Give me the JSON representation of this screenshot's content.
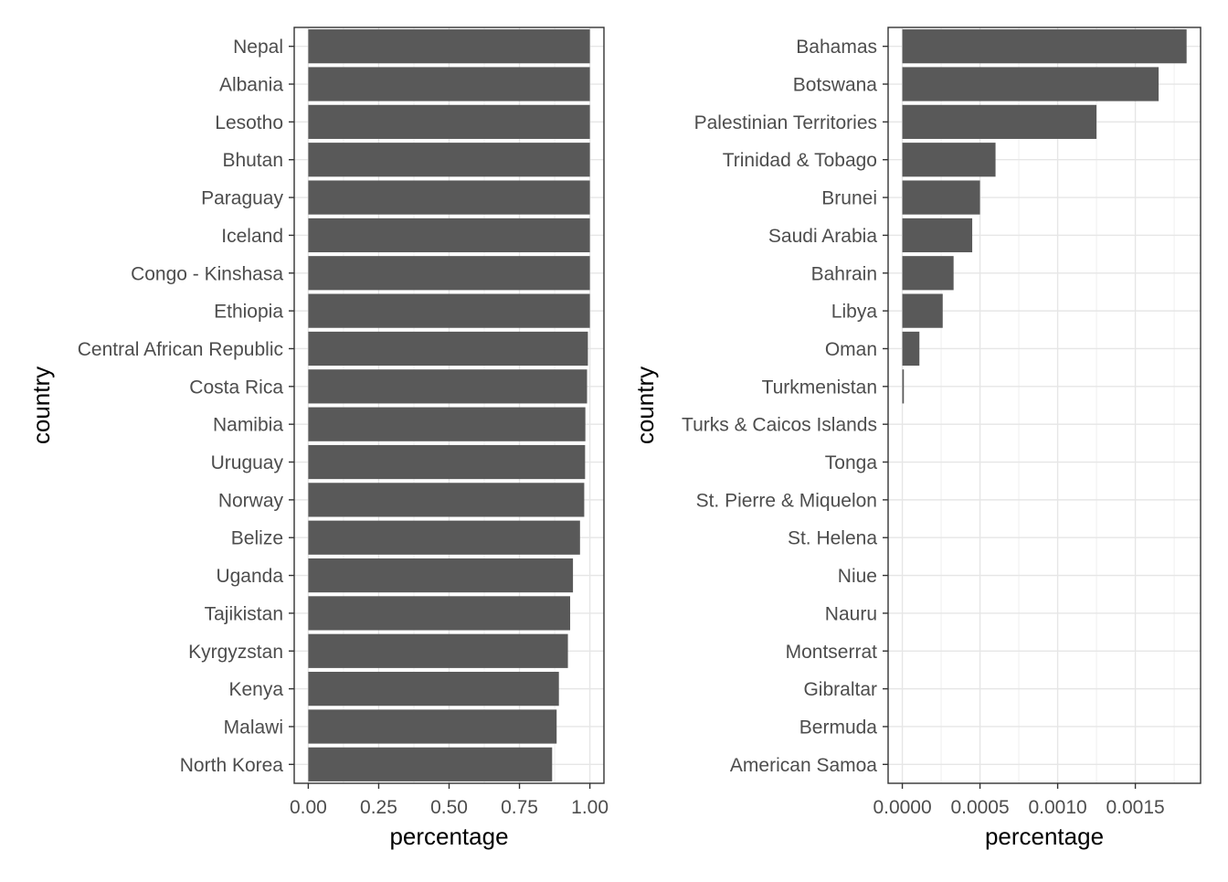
{
  "chart_data": [
    {
      "type": "bar",
      "orientation": "horizontal",
      "xlabel": "percentage",
      "ylabel": "country",
      "xlim": [
        -0.05,
        1.05
      ],
      "xticks": [
        0,
        0.25,
        0.5,
        0.75,
        1.0
      ],
      "xtick_labels": [
        "0.00",
        "0.25",
        "0.50",
        "0.75",
        "1.00"
      ],
      "grid": true,
      "theme": "bw",
      "bar_color": "#595959",
      "categories": [
        "Nepal",
        "Albania",
        "Lesotho",
        "Bhutan",
        "Paraguay",
        "Iceland",
        "Congo - Kinshasa",
        "Ethiopia",
        "Central African Republic",
        "Costa Rica",
        "Namibia",
        "Uruguay",
        "Norway",
        "Belize",
        "Uganda",
        "Tajikistan",
        "Kyrgyzstan",
        "Kenya",
        "Malawi",
        "North Korea"
      ],
      "values": [
        1.0,
        1.0,
        1.0,
        1.0,
        1.0,
        1.0,
        1.0,
        1.0,
        0.993,
        0.99,
        0.984,
        0.983,
        0.98,
        0.965,
        0.94,
        0.93,
        0.922,
        0.89,
        0.882,
        0.866
      ]
    },
    {
      "type": "bar",
      "orientation": "horizontal",
      "xlabel": "percentage",
      "ylabel": "country",
      "xlim": [
        -9.15e-05,
        0.00192
      ],
      "xticks": [
        0,
        0.0005,
        0.001,
        0.0015
      ],
      "xtick_labels": [
        "0.0000",
        "0.0005",
        "0.0010",
        "0.0015"
      ],
      "grid": true,
      "theme": "bw",
      "bar_color": "#595959",
      "categories": [
        "Bahamas",
        "Botswana",
        "Palestinian Territories",
        "Trinidad & Tobago",
        "Brunei",
        "Saudi Arabia",
        "Bahrain",
        "Libya",
        "Oman",
        "Turkmenistan",
        "Turks & Caicos Islands",
        "Tonga",
        "St. Pierre & Miquelon",
        "St. Helena",
        "Niue",
        "Nauru",
        "Montserrat",
        "Gibraltar",
        "Bermuda",
        "American Samoa"
      ],
      "values": [
        0.00183,
        0.00165,
        0.00125,
        0.0006,
        0.0005,
        0.00045,
        0.00033,
        0.00026,
        0.00011,
        1e-05,
        0,
        0,
        0,
        0,
        0,
        0,
        0,
        0,
        0,
        0
      ]
    }
  ]
}
